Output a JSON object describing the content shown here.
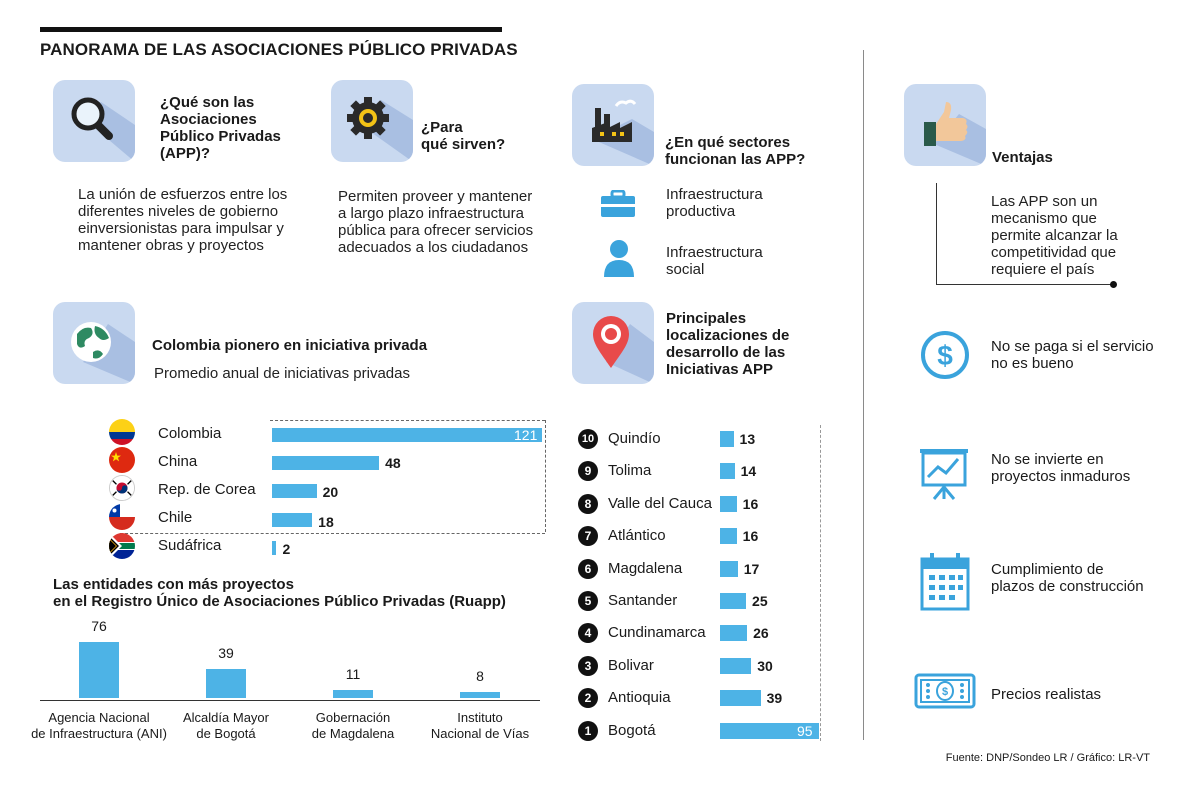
{
  "title": "PANORAMA DE LAS ASOCIACIONES PÚBLICO PRIVADAS",
  "colors": {
    "accent": "#4db3e6",
    "tile": "#c9d9f0",
    "icon_blue": "#3aa3dc"
  },
  "sections": {
    "que_son": {
      "icon": "magnifier-icon",
      "heading": [
        "¿Qué son las",
        "Asociaciones",
        "Público Privadas",
        "(APP)?"
      ],
      "body": [
        "La unión de esfuerzos entre los",
        "diferentes niveles de gobierno",
        "einversionistas para impulsar y",
        "mantener obras y proyectos"
      ]
    },
    "para_sirven": {
      "icon": "gear-icon",
      "heading": [
        "¿Para",
        "qué sirven?"
      ],
      "body": [
        "Permiten proveer y mantener",
        "a largo plazo infraestructura",
        "pública para ofrecer servicios",
        "adecuados a los ciudadanos"
      ]
    },
    "sectores": {
      "icon": "factory-icon",
      "heading": [
        "¿En qué sectores",
        "funcionan las APP?"
      ],
      "items": [
        {
          "icon": "briefcase-icon",
          "label": [
            "Infraestructura",
            "productiva"
          ]
        },
        {
          "icon": "person-icon",
          "label": [
            "Infraestructura",
            "social"
          ]
        }
      ]
    },
    "ventajas": {
      "icon": "thumbs-up-icon",
      "heading": "Ventajas",
      "body": [
        "Las APP son un",
        "mecanismo que",
        "permite alcanzar la",
        "competitividad que",
        "requiere el país"
      ],
      "items": [
        {
          "icon": "dollar-icon",
          "label": [
            "No se paga si el servicio",
            "no es bueno"
          ]
        },
        {
          "icon": "presentation-chart-icon",
          "label": [
            "No se invierte en",
            "proyectos inmaduros"
          ]
        },
        {
          "icon": "calendar-icon",
          "label": [
            "Cumplimiento de",
            "plazos de construcción"
          ]
        },
        {
          "icon": "banknote-icon",
          "label": [
            "Precios realistas"
          ]
        }
      ]
    },
    "pionero": {
      "icon": "globe-icon",
      "heading": "Colombia pionero en iniciativa privada",
      "subheading": "Promedio anual de iniciativas privadas"
    },
    "localizaciones": {
      "icon": "map-pin-icon",
      "heading": [
        "Principales",
        "localizaciones de",
        "desarrollo de las",
        "Iniciativas APP"
      ]
    }
  },
  "entities_heading": [
    "Las entidades con más proyectos",
    "en el Registro Único de Asociaciones Público Privadas (Ruapp)"
  ],
  "source": "Fuente: DNP/Sondeo LR  / Gráfico: LR-VT",
  "chart_data": [
    {
      "type": "bar",
      "orientation": "horizontal",
      "title": "Promedio anual de iniciativas privadas",
      "categories": [
        "Colombia",
        "China",
        "Rep. de Corea",
        "Chile",
        "Sudáfrica"
      ],
      "values": [
        121,
        48,
        20,
        18,
        2
      ],
      "flags": [
        "flag-colombia-icon",
        "flag-china-icon",
        "flag-korea-icon",
        "flag-chile-icon",
        "flag-south-africa-icon"
      ],
      "grid": false
    },
    {
      "type": "bar",
      "orientation": "horizontal",
      "title": "Principales localizaciones de desarrollo de las Iniciativas APP",
      "ranks": [
        10,
        9,
        8,
        7,
        6,
        5,
        4,
        3,
        2,
        1
      ],
      "categories": [
        "Quindío",
        "Tolima",
        "Valle del Cauca",
        "Atlántico",
        "Magdalena",
        "Santander",
        "Cundinamarca",
        "Bolivar",
        "Antioquia",
        "Bogotá"
      ],
      "values": [
        13,
        14,
        16,
        16,
        17,
        25,
        26,
        30,
        39,
        95
      ],
      "grid": false
    },
    {
      "type": "bar",
      "orientation": "vertical",
      "title": "Las entidades con más proyectos en el Registro Único de Asociaciones Público Privadas (Ruapp)",
      "categories": [
        [
          "Agencia Nacional",
          "de Infraestructura (ANI)"
        ],
        [
          "Alcaldía Mayor",
          "de Bogotá"
        ],
        [
          "Gobernación",
          "de Magdalena"
        ],
        [
          "Instituto",
          "Nacional de Vías"
        ]
      ],
      "values": [
        76,
        39,
        11,
        8
      ],
      "grid": false
    }
  ]
}
